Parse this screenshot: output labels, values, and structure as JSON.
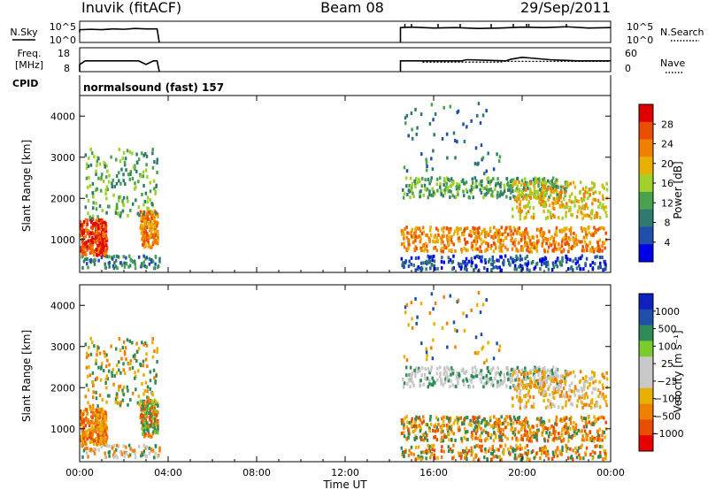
{
  "header": {
    "station": "Inuvik (fitACF)",
    "beam": "Beam 08",
    "date": "29/Sep/2011"
  },
  "colors": {
    "power_scale": [
      "#0000e8",
      "#1f4fa8",
      "#2e7a6e",
      "#4aa24f",
      "#9fd12a",
      "#e8b000",
      "#f08000",
      "#e84d00",
      "#e00000"
    ],
    "velocity_scale": [
      "#e80000",
      "#e84d00",
      "#f08000",
      "#e8b000",
      "#c8c8c8",
      "#c8c8c8",
      "#7ccb2e",
      "#2e8a56",
      "#1f4fa8",
      "#1020c0"
    ]
  },
  "chart_data": [
    {
      "type": "line",
      "panel": "noise",
      "left_labels": [
        "N.Sky",
        "10^5",
        "10^0"
      ],
      "right_labels": [
        "10^5",
        "10^0",
        "N.Search"
      ],
      "x": [
        "00:00",
        "00:30",
        "01:00",
        "01:30",
        "02:00",
        "02:30",
        "03:00",
        "03:30",
        "14:30",
        "15:00",
        "16:00",
        "17:00",
        "18:00",
        "19:00",
        "20:00",
        "21:00",
        "22:00",
        "23:00",
        "24:00"
      ],
      "series": [
        {
          "values": [
            3,
            3.1,
            3,
            3.2,
            3.1,
            3.3,
            3.2,
            3.2,
            3.5,
            3.6,
            3.4,
            3.5,
            3.3,
            3.4,
            3.6,
            3.5,
            3.7,
            3.4,
            3.5
          ]
        }
      ],
      "ylim": [
        0,
        5
      ]
    },
    {
      "type": "line",
      "panel": "frequency",
      "left_labels": [
        "Freq.",
        "[MHz]",
        "18",
        "8"
      ],
      "right_labels": [
        "60",
        "0",
        "Nave"
      ],
      "x": [
        "00:00",
        "00:15",
        "02:40",
        "03:00",
        "03:20",
        "03:30",
        "14:30",
        "14:45",
        "16:30",
        "17:15",
        "17:30",
        "19:15",
        "19:30",
        "20:00",
        "20:30",
        "21:15",
        "22:30",
        "23:30",
        "24:00"
      ],
      "series": [
        {
          "values": [
            11,
            12.5,
            12.5,
            11,
            12.5,
            12.5,
            12.5,
            12.5,
            12.5,
            12.5,
            13,
            12.5,
            13.2,
            14,
            13.6,
            13,
            12.5,
            12.5,
            12.5
          ]
        }
      ],
      "ylim": [
        8,
        18
      ]
    },
    {
      "type": "table",
      "panel": "cpid",
      "label": "CPID",
      "value": "normalsound (fast) 157"
    },
    {
      "type": "heatmap",
      "panel": "power",
      "ylabel": "Slant Range [km]",
      "yticks": [
        "1000",
        "2000",
        "3000",
        "4000"
      ],
      "ylim": [
        200,
        4500
      ],
      "colorbar_label": "Power [dB]",
      "colorbar_ticks": [
        "28",
        "24",
        "20",
        "16",
        "12",
        "8",
        "4"
      ]
    },
    {
      "type": "heatmap",
      "panel": "velocity",
      "ylabel": "Slant Range [km]",
      "yticks": [
        "1000",
        "2000",
        "3000",
        "4000"
      ],
      "ylim": [
        200,
        4500
      ],
      "colorbar_label": "Velocity [m s⁻¹]",
      "colorbar_ticks": [
        "1000",
        "500",
        "100",
        "25",
        "−25",
        "−100",
        "−500",
        "−1000"
      ]
    },
    {
      "type": "axis",
      "panel": "time",
      "xlabel": "Time UT",
      "xticks": [
        "00:00",
        "04:00",
        "08:00",
        "12:00",
        "16:00",
        "20:00",
        "00:00"
      ],
      "xlim": [
        0,
        24
      ]
    }
  ]
}
